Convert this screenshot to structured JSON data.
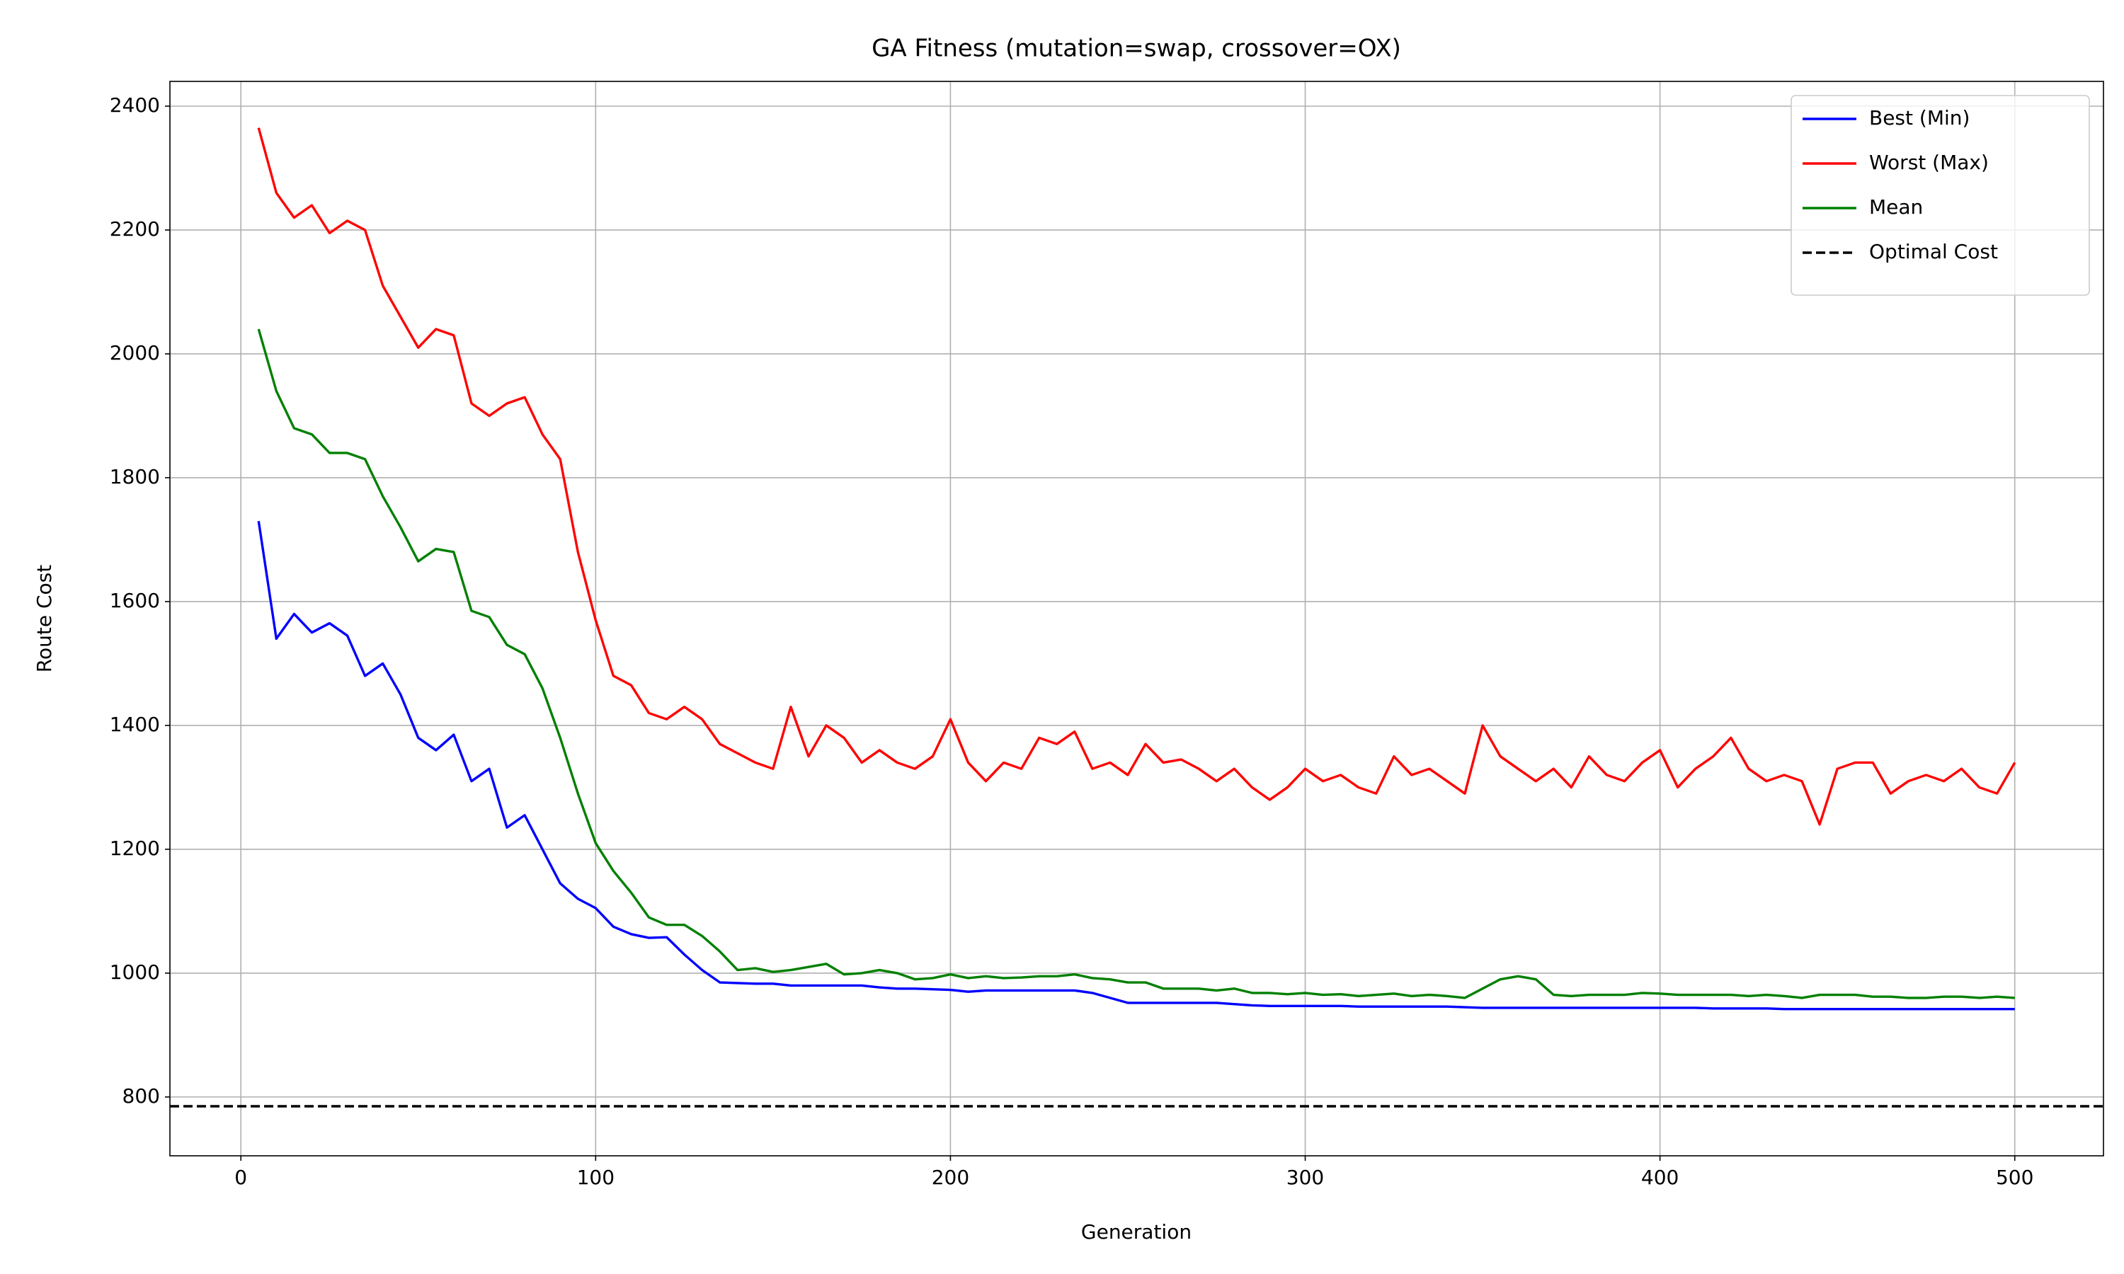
{
  "chart_data": {
    "type": "line",
    "title": "GA Fitness (mutation=swap, crossover=OX)",
    "x_label": "Generation",
    "y_label": "Route Cost",
    "x": [
      5,
      10,
      15,
      20,
      25,
      30,
      35,
      40,
      45,
      50,
      55,
      60,
      65,
      70,
      75,
      80,
      85,
      90,
      95,
      100,
      105,
      110,
      115,
      120,
      125,
      130,
      135,
      140,
      145,
      150,
      155,
      160,
      165,
      170,
      175,
      180,
      185,
      190,
      195,
      200,
      205,
      210,
      215,
      220,
      225,
      230,
      235,
      240,
      245,
      250,
      255,
      260,
      265,
      270,
      275,
      280,
      285,
      290,
      295,
      300,
      305,
      310,
      315,
      320,
      325,
      330,
      335,
      340,
      345,
      350,
      355,
      360,
      365,
      370,
      375,
      380,
      385,
      390,
      395,
      400,
      405,
      410,
      415,
      420,
      425,
      430,
      435,
      440,
      445,
      450,
      455,
      460,
      465,
      470,
      475,
      480,
      485,
      490,
      495,
      500
    ],
    "series": [
      {
        "name": "Best (Min)",
        "color": "#0000ff",
        "values": [
          1730,
          1540,
          1580,
          1550,
          1565,
          1545,
          1480,
          1500,
          1450,
          1380,
          1360,
          1385,
          1310,
          1330,
          1235,
          1255,
          1200,
          1145,
          1120,
          1105,
          1075,
          1063,
          1057,
          1058,
          1030,
          1005,
          985,
          984,
          983,
          983,
          980,
          980,
          980,
          980,
          980,
          977,
          975,
          975,
          974,
          973,
          970,
          972,
          972,
          972,
          972,
          972,
          972,
          968,
          960,
          952,
          952,
          952,
          952,
          952,
          952,
          950,
          948,
          947,
          947,
          947,
          947,
          947,
          946,
          946,
          946,
          946,
          946,
          946,
          945,
          944,
          944,
          944,
          944,
          944,
          944,
          944,
          944,
          944,
          944,
          944,
          944,
          944,
          943,
          943,
          943,
          943,
          942,
          942,
          942,
          942,
          942,
          942,
          942,
          942,
          942,
          942,
          942,
          942,
          942,
          942
        ]
      },
      {
        "name": "Worst (Max)",
        "color": "#ff0000",
        "values": [
          2365,
          2260,
          2220,
          2240,
          2195,
          2215,
          2200,
          2110,
          2060,
          2010,
          2040,
          2030,
          1920,
          1900,
          1920,
          1930,
          1870,
          1830,
          1680,
          1570,
          1480,
          1465,
          1420,
          1410,
          1430,
          1410,
          1370,
          1355,
          1340,
          1330,
          1430,
          1350,
          1400,
          1380,
          1340,
          1360,
          1340,
          1330,
          1350,
          1410,
          1340,
          1310,
          1340,
          1330,
          1380,
          1370,
          1390,
          1330,
          1340,
          1320,
          1370,
          1340,
          1345,
          1330,
          1310,
          1330,
          1300,
          1280,
          1300,
          1330,
          1310,
          1320,
          1300,
          1290,
          1350,
          1320,
          1330,
          1310,
          1290,
          1400,
          1350,
          1330,
          1310,
          1330,
          1300,
          1350,
          1320,
          1310,
          1340,
          1360,
          1300,
          1330,
          1350,
          1380,
          1330,
          1310,
          1320,
          1310,
          1240,
          1330,
          1340,
          1340,
          1290,
          1310,
          1320,
          1310,
          1330,
          1300,
          1290,
          1340
        ]
      },
      {
        "name": "Mean",
        "color": "#008000",
        "values": [
          2040,
          1940,
          1880,
          1870,
          1840,
          1840,
          1830,
          1770,
          1720,
          1665,
          1685,
          1680,
          1585,
          1575,
          1530,
          1515,
          1460,
          1380,
          1290,
          1210,
          1165,
          1130,
          1090,
          1078,
          1078,
          1060,
          1035,
          1005,
          1008,
          1002,
          1005,
          1010,
          1015,
          998,
          1000,
          1005,
          1000,
          990,
          992,
          998,
          992,
          995,
          992,
          993,
          995,
          995,
          998,
          992,
          990,
          985,
          985,
          975,
          975,
          975,
          972,
          975,
          968,
          968,
          966,
          968,
          965,
          966,
          963,
          965,
          967,
          963,
          965,
          963,
          960,
          975,
          990,
          995,
          990,
          965,
          963,
          965,
          965,
          965,
          968,
          967,
          965,
          965,
          965,
          965,
          963,
          965,
          963,
          960,
          965,
          965,
          965,
          962,
          962,
          960,
          960,
          962,
          962,
          960,
          962,
          960
        ]
      }
    ],
    "hlines": [
      {
        "name": "Optimal Cost",
        "value": 785,
        "color": "#000000",
        "dashed": true
      }
    ],
    "xlim": [
      -20,
      525
    ],
    "xticks": [
      0,
      100,
      200,
      300,
      400,
      500
    ],
    "ylim": [
      705,
      2440
    ],
    "yticks": [
      800,
      1000,
      1200,
      1400,
      1600,
      1800,
      2000,
      2200,
      2400
    ],
    "grid": true,
    "legend": "upper right"
  }
}
